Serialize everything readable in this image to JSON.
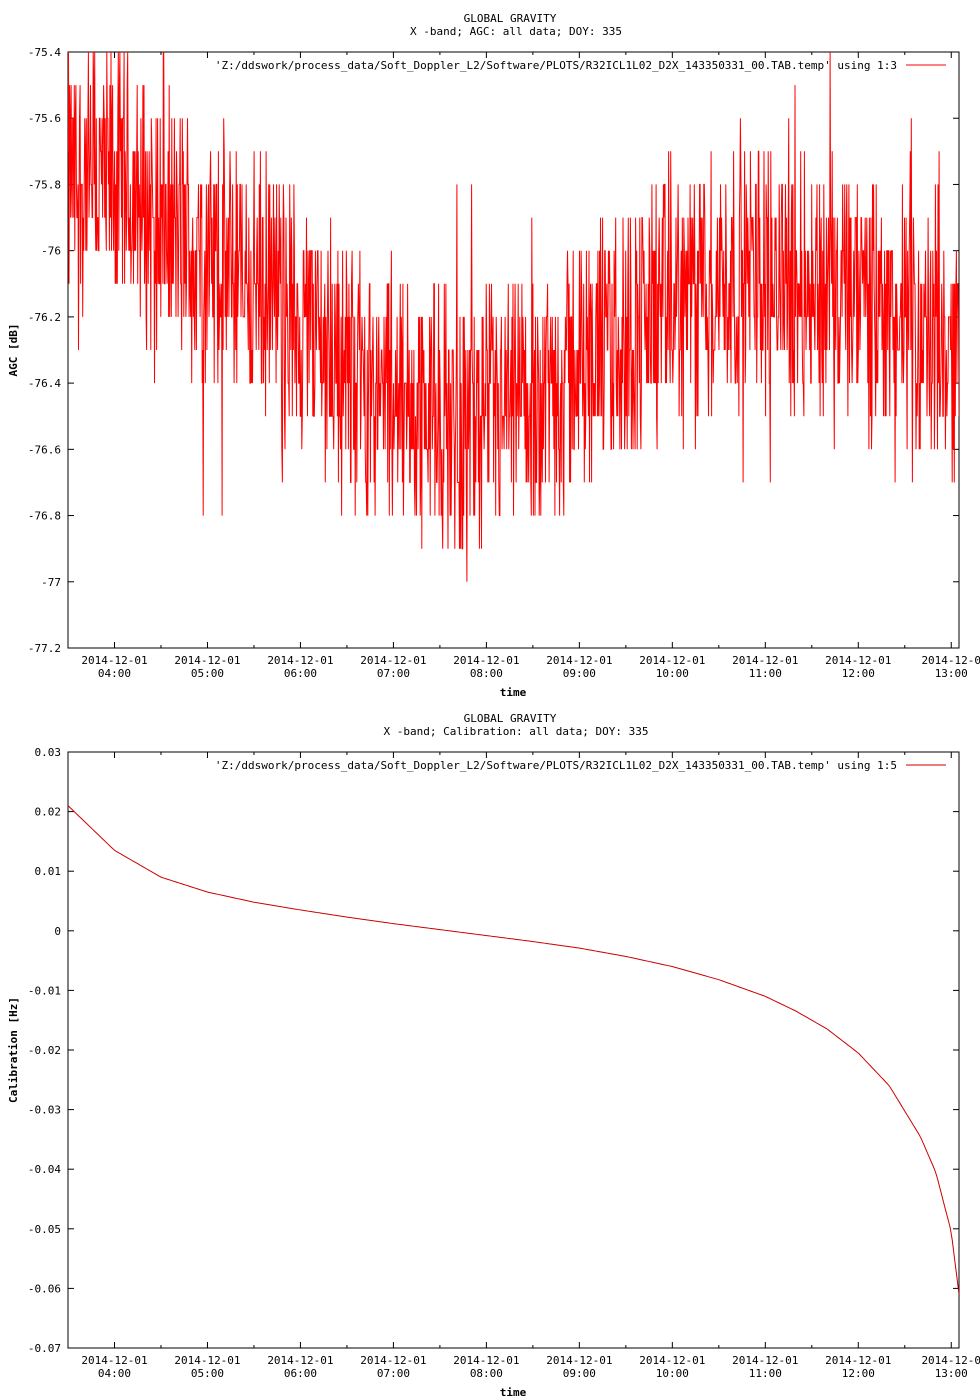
{
  "chart_data": [
    {
      "type": "line",
      "title": "GLOBAL GRAVITY",
      "subtitle": "X -band; AGC: all data; DOY: 335",
      "xlabel": "time",
      "ylabel": "AGC [dB]",
      "ylim": [
        -77.2,
        -75.4
      ],
      "yticks": [
        -75.4,
        -75.6,
        -75.8,
        -76,
        -76.2,
        -76.4,
        -76.6,
        -76.8,
        -77,
        -77.2
      ],
      "ytick_labels": [
        "-75.4",
        "-75.6",
        "-75.8",
        "-76",
        "-76.2",
        "-76.4",
        "-76.6",
        "-76.8",
        "-77",
        "-77.2"
      ],
      "xlim": [
        "2014-12-01 03:30",
        "2014-12-01 13:05"
      ],
      "xticks": [
        {
          "date": "2014-12-01",
          "time": "04:00"
        },
        {
          "date": "2014-12-01",
          "time": "05:00"
        },
        {
          "date": "2014-12-01",
          "time": "06:00"
        },
        {
          "date": "2014-12-01",
          "time": "07:00"
        },
        {
          "date": "2014-12-01",
          "time": "08:00"
        },
        {
          "date": "2014-12-01",
          "time": "09:00"
        },
        {
          "date": "2014-12-01",
          "time": "10:00"
        },
        {
          "date": "2014-12-01",
          "time": "11:00"
        },
        {
          "date": "2014-12-01",
          "time": "12:00"
        },
        {
          "date": "2014-12-0",
          "time": "13:00"
        }
      ],
      "legend_position": "top-right",
      "series": [
        {
          "name": "'Z:/ddswork/process_data/Soft_Doppler_L2/Software/PLOTS/R32ICL1L02_D2X_143350331_00.TAB.temp' using 1:3",
          "color": "#ff0000",
          "x": [
            "03:30",
            "04:00",
            "04:30",
            "05:00",
            "05:30",
            "06:00",
            "06:30",
            "07:00",
            "07:30",
            "08:00",
            "08:30",
            "09:00",
            "09:30",
            "10:00",
            "10:30",
            "11:00",
            "11:30",
            "12:00",
            "12:30",
            "13:00",
            "13:05"
          ],
          "y": [
            -75.8,
            -75.8,
            -75.9,
            -76.05,
            -76.1,
            -76.2,
            -76.35,
            -76.45,
            -76.5,
            -76.55,
            -76.45,
            -76.35,
            -76.25,
            -76.15,
            -76.1,
            -76.05,
            -76.1,
            -76.15,
            -76.25,
            -76.3,
            -76.3
          ],
          "noise_range": 0.7
        }
      ]
    },
    {
      "type": "line",
      "title": "GLOBAL GRAVITY",
      "subtitle": "X -band; Calibration: all data; DOY: 335",
      "xlabel": "time",
      "ylabel": "Calibration [Hz]",
      "ylim": [
        -0.07,
        0.03
      ],
      "yticks": [
        0.03,
        0.02,
        0.01,
        0,
        -0.01,
        -0.02,
        -0.03,
        -0.04,
        -0.05,
        -0.06,
        -0.07
      ],
      "ytick_labels": [
        "0.03",
        "0.02",
        "0.01",
        "0",
        "-0.01",
        "-0.02",
        "-0.03",
        "-0.04",
        "-0.05",
        "-0.06",
        "-0.07"
      ],
      "xlim": [
        "2014-12-01 03:30",
        "2014-12-01 13:05"
      ],
      "xticks": [
        {
          "date": "2014-12-01",
          "time": "04:00"
        },
        {
          "date": "2014-12-01",
          "time": "05:00"
        },
        {
          "date": "2014-12-01",
          "time": "06:00"
        },
        {
          "date": "2014-12-01",
          "time": "07:00"
        },
        {
          "date": "2014-12-01",
          "time": "08:00"
        },
        {
          "date": "2014-12-01",
          "time": "09:00"
        },
        {
          "date": "2014-12-01",
          "time": "10:00"
        },
        {
          "date": "2014-12-01",
          "time": "11:00"
        },
        {
          "date": "2014-12-01",
          "time": "12:00"
        },
        {
          "date": "2014-12-0",
          "time": "13:00"
        }
      ],
      "legend_position": "top-right",
      "series": [
        {
          "name": "'Z:/ddswork/process_data/Soft_Doppler_L2/Software/PLOTS/R32ICL1L02_D2X_143350331_00.TAB.temp' using 1:5",
          "color": "#cc0000",
          "x": [
            "03:30",
            "04:00",
            "04:30",
            "05:00",
            "05:30",
            "06:00",
            "06:30",
            "07:00",
            "07:30",
            "08:00",
            "08:30",
            "09:00",
            "09:30",
            "10:00",
            "10:30",
            "11:00",
            "11:20",
            "11:40",
            "12:00",
            "12:20",
            "12:40",
            "12:50",
            "13:00",
            "13:05"
          ],
          "y": [
            0.021,
            0.0135,
            0.009,
            0.0065,
            0.0048,
            0.0035,
            0.0023,
            0.0012,
            0.0002,
            -0.0008,
            -0.0018,
            -0.0029,
            -0.0043,
            -0.006,
            -0.0082,
            -0.011,
            -0.0135,
            -0.0165,
            -0.0205,
            -0.026,
            -0.0345,
            -0.0405,
            -0.0505,
            -0.061
          ]
        }
      ]
    }
  ]
}
